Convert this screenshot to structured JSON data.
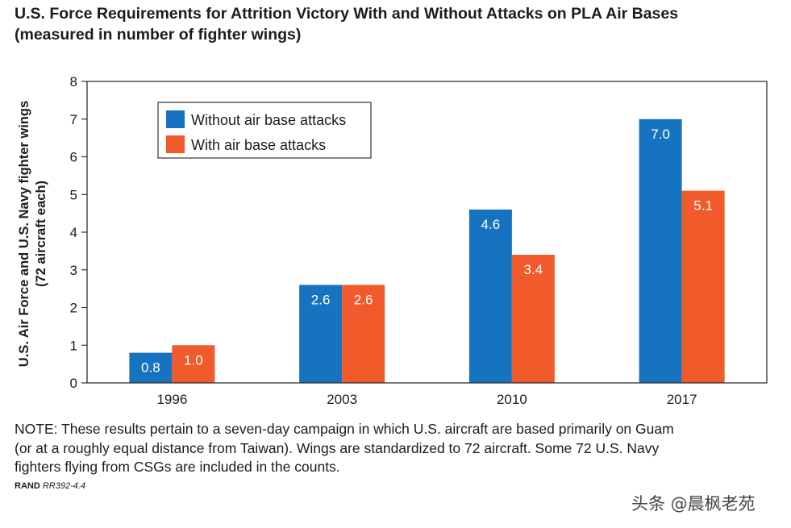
{
  "title": {
    "line1": "U.S. Force Requirements for Attrition Victory With and Without Attacks on PLA Air Bases",
    "line2": "(measured in number of fighter wings)"
  },
  "chart_data": {
    "type": "bar",
    "categories": [
      "1996",
      "2003",
      "2010",
      "2017"
    ],
    "series": [
      {
        "name": "Without air base attacks",
        "color": "#1673bf",
        "values": [
          0.8,
          2.6,
          4.6,
          7.0
        ],
        "labels": [
          "0.8",
          "2.6",
          "4.6",
          "7.0"
        ]
      },
      {
        "name": "With air base attacks",
        "color": "#f15a2b",
        "values": [
          1.0,
          2.6,
          3.4,
          5.1
        ],
        "labels": [
          "1.0",
          "2.6",
          "3.4",
          "5.1"
        ]
      }
    ],
    "ylabel_line1": "U.S. Air Force and U.S. Navy fighter wings",
    "ylabel_line2": "(72 aircraft each)",
    "xlabel": "",
    "ylim": [
      0,
      8
    ],
    "yticks": [
      "0",
      "1",
      "2",
      "3",
      "4",
      "5",
      "6",
      "7",
      "8"
    ],
    "grid": false,
    "legend_position": "top-left"
  },
  "note": {
    "line1": "NOTE: These results pertain to a seven-day campaign in which U.S. aircraft are based primarily on Guam",
    "line2": "(or at a roughly equal distance from Taiwan). Wings are standardized to 72 aircraft. Some 72 U.S. Navy",
    "line3": "fighters flying from CSGs are included in the counts."
  },
  "credit": {
    "org": "RAND",
    "id": "RR392-4.4"
  },
  "watermark": "头条 @晨枫老苑"
}
